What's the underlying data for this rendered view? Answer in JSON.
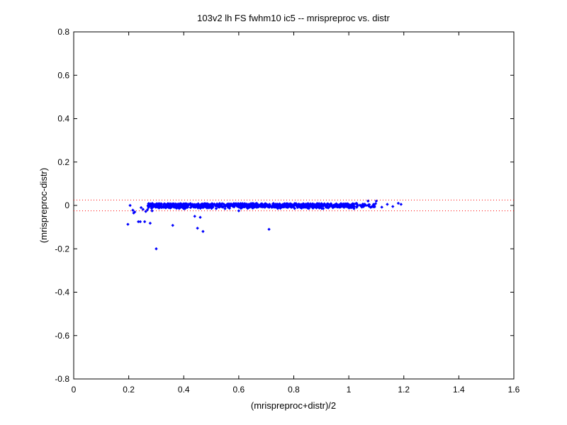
{
  "chart_data": {
    "type": "scatter",
    "title": "103v2 lh FS fwhm10 ic5 -- mrispreproc vs. distr",
    "xlabel": "(mrispreproc+distr)/2",
    "ylabel": "(mrispreproc-distr)",
    "xlim": [
      0,
      1.6
    ],
    "ylim": [
      -0.8,
      0.8
    ],
    "xticks": [
      "0",
      "0.2",
      "0.4",
      "0.6",
      "0.8",
      "1",
      "1.2",
      "1.4",
      "1.6"
    ],
    "yticks": [
      "-0.8",
      "-0.6",
      "-0.4",
      "-0.2",
      "0",
      "0.2",
      "0.4",
      "0.6",
      "0.8"
    ],
    "grid": false,
    "marker_color": "#0000ff",
    "reference_lines": {
      "style": "dotted",
      "color": "#ff0000",
      "y": [
        0.025,
        -0.025
      ]
    },
    "series": [
      {
        "values_note": "",
        "points": [
          [
            0.197,
            -0.087
          ],
          [
            0.205,
            0.0
          ],
          [
            0.215,
            -0.022
          ],
          [
            0.218,
            -0.035
          ],
          [
            0.222,
            -0.03
          ],
          [
            0.235,
            -0.075
          ],
          [
            0.242,
            -0.075
          ],
          [
            0.245,
            -0.01
          ],
          [
            0.252,
            -0.018
          ],
          [
            0.258,
            -0.075
          ],
          [
            0.262,
            -0.028
          ],
          [
            0.268,
            -0.02
          ],
          [
            0.272,
            -0.01
          ],
          [
            0.278,
            -0.082
          ],
          [
            0.28,
            -0.005
          ],
          [
            0.285,
            -0.025
          ],
          [
            0.29,
            0.0
          ],
          [
            0.3,
            -0.2
          ],
          [
            0.31,
            -0.012
          ],
          [
            0.32,
            -0.01
          ],
          [
            0.33,
            -0.008
          ],
          [
            0.345,
            -0.01
          ],
          [
            0.36,
            -0.092
          ],
          [
            0.375,
            -0.012
          ],
          [
            0.4,
            -0.015
          ],
          [
            0.425,
            -0.01
          ],
          [
            0.44,
            -0.05
          ],
          [
            0.45,
            -0.105
          ],
          [
            0.46,
            -0.055
          ],
          [
            0.47,
            -0.12
          ],
          [
            0.5,
            -0.01
          ],
          [
            0.55,
            -0.015
          ],
          [
            0.6,
            -0.025
          ],
          [
            0.65,
            -0.012
          ],
          [
            0.71,
            -0.11
          ],
          [
            0.75,
            -0.01
          ],
          [
            0.8,
            -0.008
          ],
          [
            0.85,
            -0.012
          ],
          [
            0.9,
            -0.005
          ],
          [
            0.95,
            0.0
          ],
          [
            1.0,
            0.0
          ],
          [
            1.03,
            -0.005
          ],
          [
            1.05,
            0.005
          ],
          [
            1.07,
            0.02
          ],
          [
            1.09,
            0.005
          ],
          [
            1.1,
            0.02
          ],
          [
            1.12,
            -0.008
          ],
          [
            1.14,
            0.005
          ],
          [
            1.16,
            -0.005
          ],
          [
            1.18,
            0.01
          ],
          [
            1.19,
            0.005
          ]
        ]
      }
    ]
  }
}
